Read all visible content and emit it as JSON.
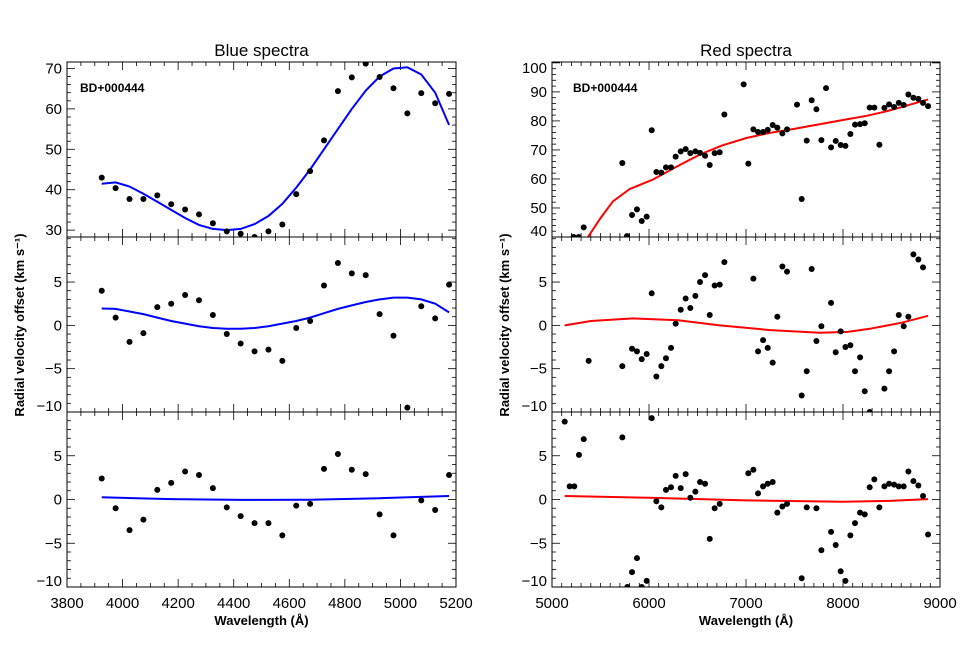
{
  "chart_data": [
    {
      "type": "scatter",
      "title": "Blue spectra",
      "xlabel": "Wavelength (Å)",
      "ylabel": "Radial velocity offset (km s⁻¹)",
      "star_label": "BD+000444",
      "fit_color": "#0000ff",
      "point_color": "#000000",
      "xlim": [
        3800,
        5200
      ],
      "xticks": [
        3800,
        4000,
        4200,
        4400,
        4600,
        4800,
        5000,
        5200
      ],
      "panels": [
        {
          "ylim": [
            28.3,
            71.6
          ],
          "yticks": [
            30,
            40,
            50,
            60,
            70
          ],
          "points": {
            "x": [
              3925,
              3975,
              4025,
              4075,
              4125,
              4175,
              4225,
              4275,
              4325,
              4375,
              4425,
              4475,
              4525,
              4575,
              4625,
              4675,
              4725,
              4775,
              4825,
              4875,
              4925,
              4975,
              5025,
              5075,
              5125,
              5175
            ],
            "y": [
              43.0,
              40.4,
              37.7,
              37.7,
              38.6,
              36.4,
              35.1,
              33.9,
              31.7,
              29.7,
              29.1,
              28.3,
              29.7,
              31.4,
              38.9,
              44.6,
              52.2,
              64.4,
              67.8,
              71.2,
              67.9,
              65.1,
              58.9,
              63.9,
              61.4,
              63.7
            ]
          },
          "fit": {
            "x": [
              3925,
              3975,
              4025,
              4075,
              4125,
              4175,
              4225,
              4275,
              4325,
              4375,
              4425,
              4475,
              4525,
              4575,
              4625,
              4675,
              4725,
              4775,
              4825,
              4875,
              4925,
              4975,
              5025,
              5075,
              5125,
              5175
            ],
            "y": [
              41.5,
              41.8,
              40.8,
              39.0,
              37.0,
              35.0,
              33.0,
              31.3,
              30.3,
              30.0,
              30.3,
              31.5,
              33.5,
              36.5,
              40.5,
              45.0,
              50.0,
              55.0,
              60.0,
              64.5,
              68.0,
              70.0,
              70.3,
              68.5,
              64.0,
              56.0
            ]
          }
        },
        {
          "ylim": [
            -10,
            10.2
          ],
          "yticks": [
            -10,
            -5,
            0,
            5
          ],
          "points": {
            "x": [
              3925,
              3975,
              4025,
              4075,
              4125,
              4175,
              4225,
              4275,
              4325,
              4375,
              4425,
              4475,
              4525,
              4575,
              4625,
              4675,
              4725,
              4775,
              4825,
              4875,
              4925,
              4975,
              5025,
              5075,
              5125,
              5175
            ],
            "y": [
              4.0,
              0.9,
              -1.9,
              -0.9,
              2.1,
              2.5,
              3.5,
              2.9,
              1.2,
              -1.0,
              -2.1,
              -3.0,
              -2.8,
              -4.1,
              -0.3,
              0.5,
              4.6,
              7.2,
              6.0,
              5.8,
              1.3,
              -1.2,
              -9.5,
              2.2,
              0.8,
              4.7
            ]
          },
          "fit": {
            "x": [
              3925,
              3975,
              4025,
              4075,
              4125,
              4175,
              4225,
              4275,
              4325,
              4375,
              4425,
              4475,
              4525,
              4575,
              4625,
              4675,
              4725,
              4775,
              4825,
              4875,
              4925,
              4975,
              5025,
              5075,
              5125,
              5175
            ],
            "y": [
              1.95,
              1.9,
              1.6,
              1.3,
              0.9,
              0.5,
              0.2,
              -0.1,
              -0.3,
              -0.4,
              -0.4,
              -0.3,
              -0.1,
              0.2,
              0.5,
              0.9,
              1.4,
              1.9,
              2.3,
              2.7,
              3.0,
              3.2,
              3.2,
              3.0,
              2.5,
              1.5
            ]
          }
        },
        {
          "ylim": [
            -10,
            10
          ],
          "yticks": [
            -10,
            -5,
            0,
            5
          ],
          "points": {
            "x": [
              3925,
              3975,
              4025,
              4075,
              4125,
              4175,
              4225,
              4275,
              4325,
              4375,
              4425,
              4475,
              4525,
              4575,
              4625,
              4675,
              4725,
              4775,
              4825,
              4875,
              4925,
              4975,
              5075,
              5125,
              5175
            ],
            "y": [
              2.4,
              -1.0,
              -3.5,
              -2.3,
              1.1,
              1.9,
              3.2,
              2.8,
              1.3,
              -0.9,
              -1.9,
              -2.7,
              -2.7,
              -4.1,
              -0.7,
              -0.5,
              3.5,
              5.2,
              3.4,
              2.9,
              -1.7,
              -4.1,
              -0.1,
              -1.2,
              2.8
            ]
          },
          "fit": {
            "x": [
              3925,
              4175,
              4425,
              4675,
              4925,
              5175
            ],
            "y": [
              0.25,
              0.05,
              -0.05,
              -0.02,
              0.15,
              0.4
            ]
          }
        }
      ]
    },
    {
      "type": "scatter",
      "title": "Red spectra",
      "xlabel": "Wavelength (Å)",
      "ylabel": "Radial velocity offset (km s⁻¹)",
      "star_label": "BD+000444",
      "fit_color": "#ff0000",
      "point_color": "#000000",
      "xlim": [
        5000,
        9000
      ],
      "xticks": [
        5000,
        6000,
        7000,
        8000,
        9000
      ],
      "panels": [
        {
          "ylim": [
            40,
            100.3
          ],
          "yticks": [
            40,
            50,
            60,
            70,
            80,
            90,
            100
          ],
          "points": {
            "x": [
              5223,
              5275,
              5327,
              5725,
              5773,
              5825,
              5876,
              5925,
              5976,
              6028,
              6076,
              6127,
              6175,
              6227,
              6275,
              6327,
              6378,
              6426,
              6478,
              6526,
              6578,
              6626,
              6677,
              6729,
              6777,
              6976,
              7024,
              7076,
              7124,
              7176,
              7224,
              7275,
              7323,
              7375,
              7423,
              7526,
              7574,
              7626,
              7677,
              7726,
              7777,
              7825,
              7877,
              7925,
              7976,
              8025,
              8076,
              8124,
              8176,
              8224,
              8275,
              8323,
              8375,
              8427,
              8475,
              8527,
              8575,
              8626,
              8674,
              8726,
              8777,
              8825,
              8877
            ],
            "y": [
              40.0,
              40.0,
              43.3,
              65.5,
              40.3,
              47.6,
              49.5,
              45.5,
              47.0,
              76.8,
              62.4,
              62.2,
              64.0,
              64.0,
              67.7,
              69.5,
              70.3,
              68.9,
              69.5,
              69.0,
              68.0,
              64.8,
              68.9,
              69.2,
              82.2,
              92.6,
              65.3,
              77.1,
              76.2,
              76.2,
              76.9,
              78.6,
              77.7,
              75.7,
              77.1,
              85.6,
              53.1,
              73.2,
              87.1,
              84.0,
              73.4,
              91.3,
              70.9,
              73.1,
              71.7,
              71.4,
              75.5,
              78.7,
              78.9,
              79.2,
              84.6,
              84.6,
              71.8,
              84.5,
              85.7,
              84.8,
              86.2,
              85.5,
              89.1,
              88.0,
              87.6,
              86.2,
              85.1
            ]
          },
          "fit": {
            "x": [
              5371,
              5500,
              5629,
              5800,
              6041,
              6300,
              6523,
              6750,
              7004,
              7250,
              7519,
              7750,
              8000,
              8250,
              8447,
              8650,
              8877
            ],
            "y": [
              40.0,
              46.5,
              52.3,
              56.5,
              59.8,
              64.5,
              68.4,
              71.5,
              74.1,
              75.9,
              77.4,
              78.8,
              80.3,
              81.8,
              83.3,
              85.2,
              87.4
            ]
          }
        },
        {
          "ylim": [
            -10,
            10.2
          ],
          "yticks": [
            -10,
            -5,
            0,
            5
          ],
          "points": {
            "x": [
              5378,
              5725,
              5825,
              5876,
              5925,
              5976,
              6028,
              6076,
              6127,
              6175,
              6227,
              6275,
              6327,
              6378,
              6426,
              6478,
              6526,
              6578,
              6626,
              6677,
              6729,
              6777,
              7076,
              7124,
              7176,
              7224,
              7275,
              7323,
              7375,
              7423,
              7574,
              7626,
              7677,
              7726,
              7777,
              7877,
              7925,
              7976,
              8025,
              8076,
              8124,
              8176,
              8224,
              8275,
              8427,
              8475,
              8527,
              8575,
              8626,
              8674,
              8726,
              8777,
              8825
            ],
            "y": [
              -4.1,
              -4.7,
              -2.7,
              -3.0,
              -3.9,
              -3.3,
              3.7,
              -5.9,
              -4.7,
              -3.8,
              -2.6,
              0.2,
              1.8,
              3.1,
              2.0,
              3.4,
              5.0,
              5.8,
              1.2,
              4.6,
              4.7,
              7.3,
              5.4,
              -3.0,
              -1.7,
              -2.6,
              -4.3,
              1.0,
              6.8,
              6.2,
              -8.1,
              -5.3,
              6.5,
              -1.8,
              -0.1,
              2.6,
              -3.1,
              -0.7,
              -2.5,
              -2.3,
              -5.3,
              -3.7,
              -7.6,
              -10.0,
              -7.3,
              -5.3,
              -3.0,
              1.2,
              -0.1,
              1.0,
              8.2,
              7.6,
              6.7
            ]
          },
          "fit": {
            "x": [
              5131,
              5400,
              5835,
              6300,
              6729,
              7250,
              7760,
              8050,
              8275,
              8600,
              8877
            ],
            "y": [
              0.0,
              0.5,
              0.8,
              0.6,
              0.0,
              -0.55,
              -0.85,
              -0.75,
              -0.4,
              0.3,
              1.1
            ]
          }
        },
        {
          "ylim": [
            -10,
            10
          ],
          "yticks": [
            -10,
            -5,
            0,
            5
          ],
          "points": {
            "x": [
              5131,
              5182,
              5230,
              5278,
              5327,
              5725,
              5777,
              5825,
              5876,
              5925,
              5976,
              6028,
              6076,
              6127,
              6175,
              6227,
              6275,
              6327,
              6378,
              6426,
              6478,
              6526,
              6578,
              6626,
              6677,
              6729,
              7024,
              7076,
              7124,
              7176,
              7224,
              7275,
              7323,
              7375,
              7423,
              7574,
              7626,
              7726,
              7777,
              7877,
              7925,
              7976,
              8025,
              8076,
              8124,
              8176,
              8224,
              8275,
              8323,
              8375,
              8427,
              8475,
              8527,
              8575,
              8626,
              8674,
              8726,
              8777,
              8825,
              8877
            ],
            "y": [
              8.9,
              1.5,
              1.5,
              5.1,
              6.9,
              7.1,
              -10.0,
              -8.3,
              -6.7,
              -10.0,
              -9.3,
              9.3,
              -0.2,
              -0.9,
              1.1,
              1.4,
              2.7,
              1.3,
              2.9,
              0.2,
              0.9,
              2.0,
              1.8,
              -4.5,
              -1.0,
              -0.5,
              3.0,
              3.4,
              0.7,
              1.5,
              1.8,
              2.0,
              -1.5,
              -0.8,
              -0.5,
              -9.0,
              -0.9,
              -1.0,
              -5.8,
              -3.7,
              -5.2,
              -8.2,
              -9.3,
              -4.1,
              -2.7,
              -1.5,
              -1.7,
              1.4,
              2.3,
              -0.9,
              1.5,
              1.8,
              1.7,
              1.5,
              1.5,
              3.2,
              2.1,
              1.6,
              0.4,
              -4.0
            ]
          },
          "fit": {
            "x": [
              5131,
              6000,
              7000,
              8000,
              8500,
              8877
            ],
            "y": [
              0.4,
              0.2,
              -0.1,
              -0.25,
              -0.15,
              0.05
            ]
          }
        }
      ]
    }
  ]
}
